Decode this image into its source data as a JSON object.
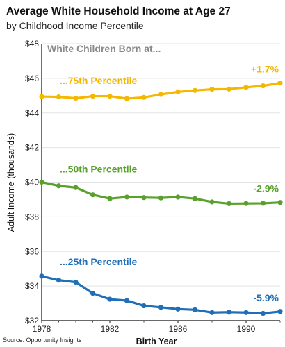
{
  "title": "Average White Household Income at Age 27",
  "subtitle": "by Childhood Income Percentile",
  "source": "Source: Opportunity Insights",
  "chart_data": {
    "type": "line",
    "annotation": "White Children Born at...",
    "xlabel": "Birth Year",
    "ylabel": "Adult Income (thousands)",
    "xlim": [
      1978,
      1992
    ],
    "ylim": [
      32,
      48
    ],
    "x_ticks": [
      1978,
      1982,
      1986,
      1990
    ],
    "x_tick_labels": [
      "1978",
      "1982",
      "1986",
      "1990"
    ],
    "y_ticks": [
      32,
      34,
      36,
      38,
      40,
      42,
      44,
      46,
      48
    ],
    "y_tick_labels": [
      "$32",
      "$34",
      "$36",
      "$38",
      "$40",
      "$42",
      "$44",
      "$46",
      "$48"
    ],
    "grid": "horizontal",
    "x": [
      1978,
      1979,
      1980,
      1981,
      1982,
      1983,
      1984,
      1985,
      1986,
      1987,
      1988,
      1989,
      1990,
      1991,
      1992
    ],
    "series": [
      {
        "name": "...75th Percentile",
        "color": "#f5b800",
        "change_label": "+1.7%",
        "values": [
          44.95,
          44.93,
          44.85,
          44.97,
          44.97,
          44.83,
          44.9,
          45.07,
          45.22,
          45.3,
          45.37,
          45.38,
          45.48,
          45.57,
          45.73
        ]
      },
      {
        "name": "...50th Percentile",
        "color": "#5aa02c",
        "change_label": "-2.9%",
        "values": [
          40.0,
          39.79,
          39.69,
          39.27,
          39.05,
          39.14,
          39.11,
          39.09,
          39.14,
          39.05,
          38.86,
          38.76,
          38.77,
          38.78,
          38.83
        ]
      },
      {
        "name": "...25th Percentile",
        "color": "#1f6fb8",
        "change_label": "-5.9%",
        "values": [
          34.57,
          34.34,
          34.22,
          33.58,
          33.24,
          33.16,
          32.86,
          32.77,
          32.67,
          32.63,
          32.47,
          32.49,
          32.47,
          32.42,
          32.53
        ]
      }
    ]
  }
}
